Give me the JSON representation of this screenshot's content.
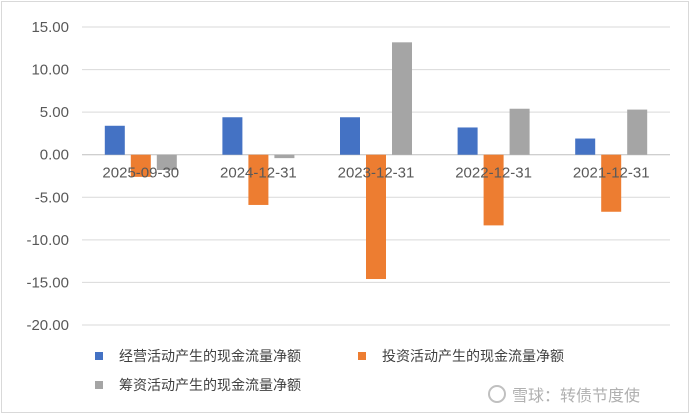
{
  "chart_data": {
    "type": "bar",
    "categories": [
      "2025-09-30",
      "2024-12-31",
      "2023-12-31",
      "2022-12-31",
      "2021-12-31"
    ],
    "series": [
      {
        "name": "经营活动产生的现金流量净额",
        "color": "#4472C4",
        "values": [
          3.4,
          4.4,
          4.4,
          3.2,
          1.9
        ]
      },
      {
        "name": "投资活动产生的现金流量净额",
        "color": "#ED7D31",
        "values": [
          -2.6,
          -5.9,
          -14.6,
          -8.3,
          -6.7
        ]
      },
      {
        "name": "筹资活动产生的现金流量净额",
        "color": "#A5A5A5",
        "values": [
          -1.8,
          -0.4,
          13.2,
          5.4,
          5.3
        ]
      }
    ],
    "yticks": [
      "15.00",
      "10.00",
      "5.00",
      "0.00",
      "-5.00",
      "-10.00",
      "-15.00",
      "-20.00"
    ],
    "ylim": [
      -20,
      15
    ],
    "grid": true,
    "legend_position": "bottom"
  },
  "watermark": {
    "text": "雪球：转债节度使",
    "icon": "snowball-logo-icon"
  }
}
